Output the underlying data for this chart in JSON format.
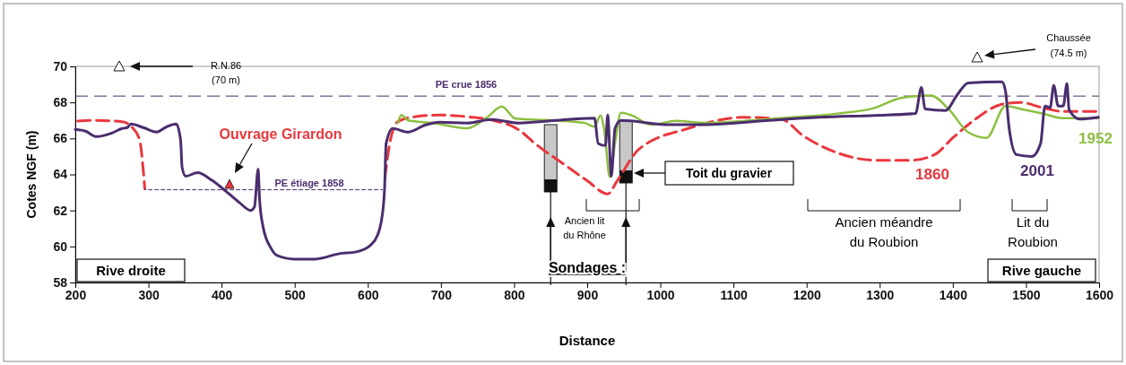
{
  "chart_data": {
    "type": "line",
    "xlabel": "Distance",
    "ylabel": "Cotes NGF (m)",
    "xlim": [
      200,
      1600
    ],
    "ylim": [
      58,
      70
    ],
    "xticks": [
      200,
      300,
      400,
      500,
      600,
      700,
      800,
      900,
      1000,
      1100,
      1200,
      1300,
      1400,
      1500,
      1600
    ],
    "yticks": [
      58,
      60,
      62,
      64,
      66,
      68,
      70
    ],
    "grid": false,
    "series": [
      {
        "name": "1860",
        "color": "#e8383d",
        "line_style": "dashed",
        "x": [
          200,
          226,
          264,
          278,
          288,
          293,
          295,
          null,
          623,
          629,
          641,
          664,
          698,
          736,
          769,
          807,
          829,
          867,
          900,
          928,
          941,
          971,
          1038,
          1114,
          1165,
          1196,
          1242,
          1293,
          1344,
          1375,
          1400,
          1431,
          1467,
          1492,
          1523,
          1549,
          1599
        ],
        "values": [
          66.96,
          67.0,
          66.93,
          66.6,
          65.9,
          64.2,
          63.2,
          null,
          63.67,
          65.5,
          66.93,
          67.2,
          67.3,
          67.2,
          67.02,
          66.46,
          65.7,
          64.6,
          63.65,
          62.92,
          63.65,
          65.41,
          66.55,
          67.17,
          67.07,
          66.13,
          65.2,
          64.79,
          64.79,
          65.1,
          66.03,
          67.07,
          67.9,
          68.0,
          67.7,
          67.5,
          67.5
        ]
      },
      {
        "name": "1952",
        "color": "#8cbf3f",
        "line_style": "solid",
        "x": [
          641,
          646,
          655,
          688,
          736,
          764,
          783,
          802,
          854,
          896,
          910,
          918,
          923,
          931,
          938,
          946,
          961,
          987,
          1022,
          1063,
          1165,
          1242,
          1293,
          1329,
          1370,
          1395,
          1421,
          1446,
          1472,
          1498,
          1523,
          1549,
          1599
        ],
        "values": [
          66.86,
          67.3,
          67.0,
          66.86,
          66.56,
          67.2,
          67.77,
          67.1,
          67.0,
          66.86,
          66.65,
          67.28,
          66.55,
          63.85,
          65.72,
          67.42,
          67.28,
          66.76,
          66.97,
          66.86,
          67.13,
          67.38,
          67.69,
          68.25,
          68.38,
          67.59,
          66.34,
          66.03,
          67.8,
          67.59,
          67.38,
          67.13,
          67.13
        ]
      },
      {
        "name": "2001",
        "color": "#4b2d6e",
        "line_style": "solid",
        "x": [
          200,
          214,
          229,
          250,
          264,
          271,
          276,
          293,
          311,
          325,
          338,
          344,
          346,
          351,
          367,
          386,
          405,
          424,
          440,
          445,
          450,
          452,
          457,
          467,
          476,
          500,
          528,
          561,
          584,
          603,
          613,
          620,
          623,
          625,
          634,
          655,
          679,
          698,
          736,
          769,
          807,
          849,
          910,
          915,
          925,
          928,
          933,
          938,
          946,
          1012,
          1063,
          1140,
          1217,
          1293,
          1349,
          1357,
          1362,
          1390,
          1406,
          1421,
          1467,
          1472,
          1477,
          1487,
          1508,
          1520,
          1526,
          1533,
          1538,
          1544,
          1551,
          1556,
          1559,
          1574,
          1599
        ],
        "values": [
          66.5,
          66.4,
          66.1,
          66.3,
          66.55,
          66.6,
          66.8,
          66.6,
          66.35,
          66.65,
          66.8,
          65.9,
          64.4,
          63.9,
          64.1,
          63.7,
          63.1,
          62.45,
          62.0,
          62.2,
          64.3,
          62.6,
          61.05,
          59.95,
          59.5,
          59.3,
          59.3,
          59.6,
          59.7,
          60.05,
          60.6,
          61.8,
          63.3,
          65.7,
          66.55,
          66.35,
          66.75,
          66.9,
          66.85,
          67.05,
          66.85,
          66.97,
          67.13,
          65.72,
          65.6,
          67.3,
          63.9,
          66.55,
          67.0,
          66.76,
          66.76,
          66.97,
          67.17,
          67.28,
          67.38,
          68.83,
          67.63,
          67.55,
          68.42,
          69.08,
          69.14,
          68.63,
          66.55,
          65.1,
          65.0,
          65.72,
          67.8,
          67.7,
          68.94,
          67.8,
          67.8,
          69.04,
          67.59,
          67.07,
          67.17
        ]
      },
      {
        "name": "PE étiage 1858",
        "color": "#4b2d6e",
        "line_style": "dotted",
        "x": [
          295,
          620
        ],
        "values": [
          63.15,
          63.15
        ]
      }
    ],
    "ref_lines": [
      {
        "axis": "y",
        "value": 68.35,
        "label": "PE crue 1856",
        "color": "#4b2d6e",
        "line_style": "dashed"
      }
    ],
    "annotations": [
      "R.N.86 (70 m)",
      "Chaussée (74.5 m)",
      "Ouvrage Girardon",
      "Toit du gravier",
      "Ancien lit du Rhône",
      "Ancien méandre du Roubion",
      "Lit du Roubion",
      "Sondages :",
      "Rive droite",
      "Rive gauche"
    ]
  }
}
